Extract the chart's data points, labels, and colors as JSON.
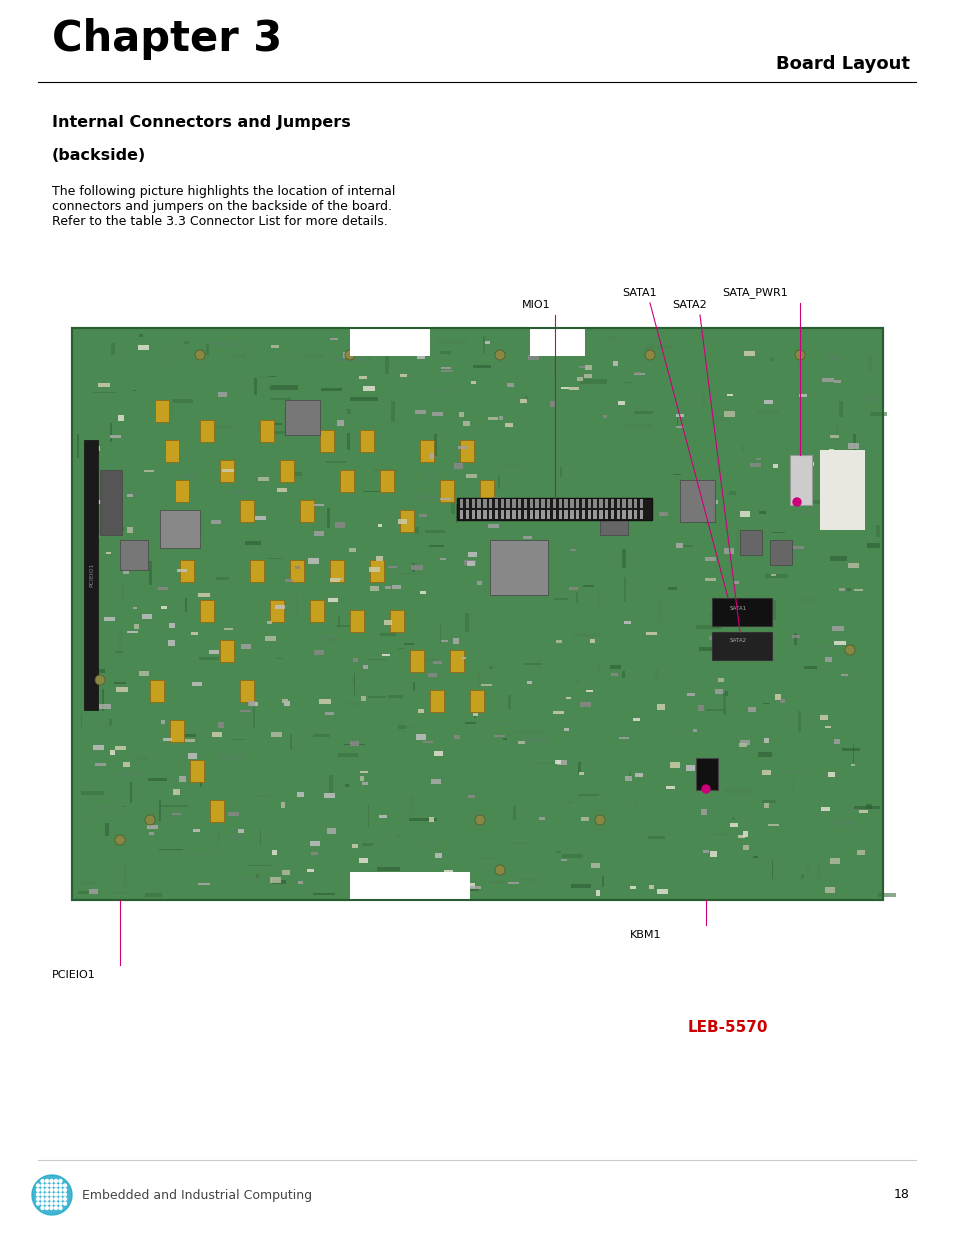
{
  "page_width": 9.54,
  "page_height": 12.35,
  "bg_color": "#ffffff",
  "chapter_title": "Chapter 3",
  "chapter_title_fontsize": 30,
  "chapter_title_weight": "bold",
  "section_title_right": "Board Layout",
  "section_title_fontsize": 13,
  "section_title_weight": "bold",
  "subsection_title_line1": "Internal Connectors and Jumpers",
  "subsection_title_line2": "(backside)",
  "subsection_fontsize": 11.5,
  "subsection_weight": "bold",
  "body_text_line1": "The following picture highlights the location of internal",
  "body_text_line2": "connectors and jumpers on the backside of the board.",
  "body_text_line3": "Refer to the table 3.3 Connector List for more details.",
  "body_fontsize": 9.0,
  "board_bg_color": "#3a7d44",
  "annotation_color": "#cc007a",
  "annotation_fontsize": 8.0,
  "leb_text": "LEB-5570",
  "leb_color": "#cc0000",
  "leb_fontsize": 11,
  "leb_weight": "bold",
  "footer_text": "Embedded and Industrial Computing",
  "footer_fontsize": 9,
  "page_num": "18",
  "page_num_fontsize": 9
}
